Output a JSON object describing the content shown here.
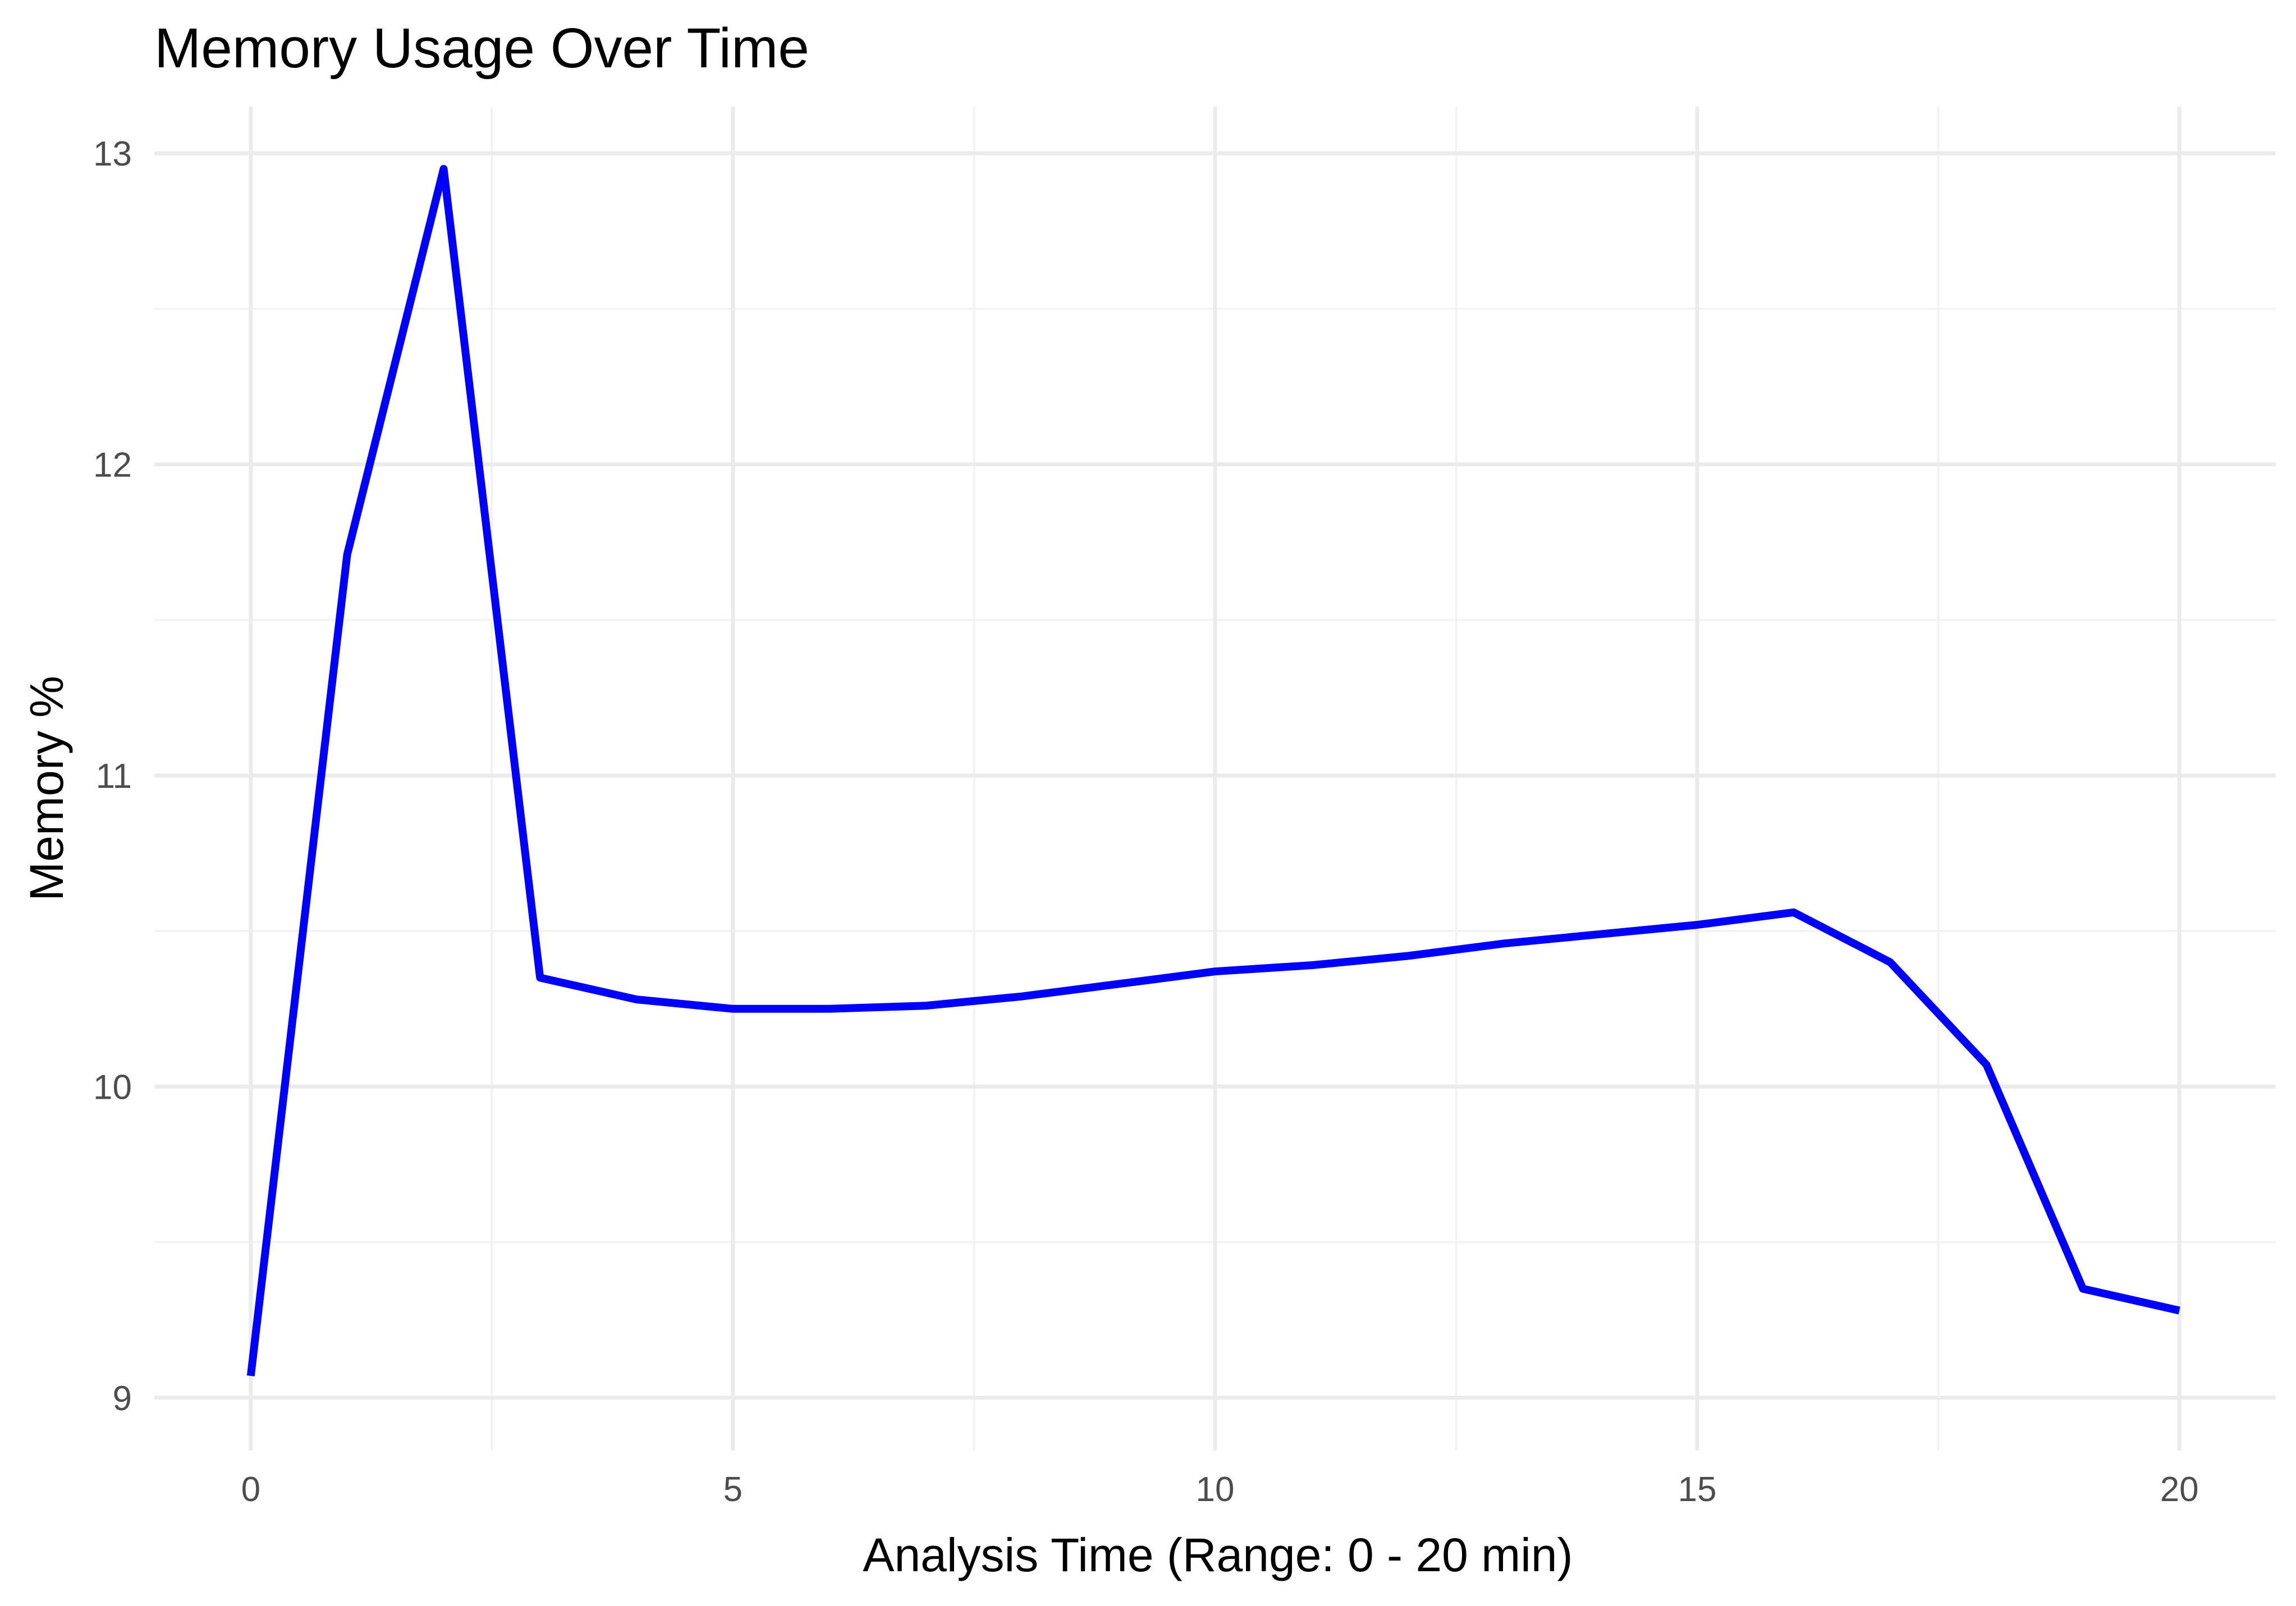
{
  "chart_data": {
    "type": "line",
    "title": "Memory Usage Over Time",
    "xlabel": "Analysis Time (Range: 0 - 20  min)",
    "ylabel": "Memory %",
    "xlim": [
      -1,
      21
    ],
    "ylim": [
      8.83,
      13.15
    ],
    "x_ticks": [
      0,
      5,
      10,
      15,
      20
    ],
    "y_ticks": [
      9,
      10,
      11,
      12,
      13
    ],
    "x_minor": [
      2.5,
      7.5,
      12.5,
      17.5
    ],
    "y_minor": [
      9.5,
      10.5,
      11.5,
      12.5
    ],
    "grid": true,
    "legend": "none",
    "series": [
      {
        "color": "#0000ff",
        "x": [
          0,
          1,
          2,
          3,
          4,
          5,
          6,
          7,
          8,
          9,
          10,
          11,
          12,
          13,
          14,
          15,
          16,
          17,
          18,
          19,
          20
        ],
        "y": [
          9.07,
          11.71,
          12.95,
          10.35,
          10.28,
          10.25,
          10.25,
          10.26,
          10.29,
          10.33,
          10.37,
          10.39,
          10.42,
          10.46,
          10.49,
          10.52,
          10.56,
          10.4,
          10.07,
          9.35,
          9.28
        ]
      }
    ]
  }
}
